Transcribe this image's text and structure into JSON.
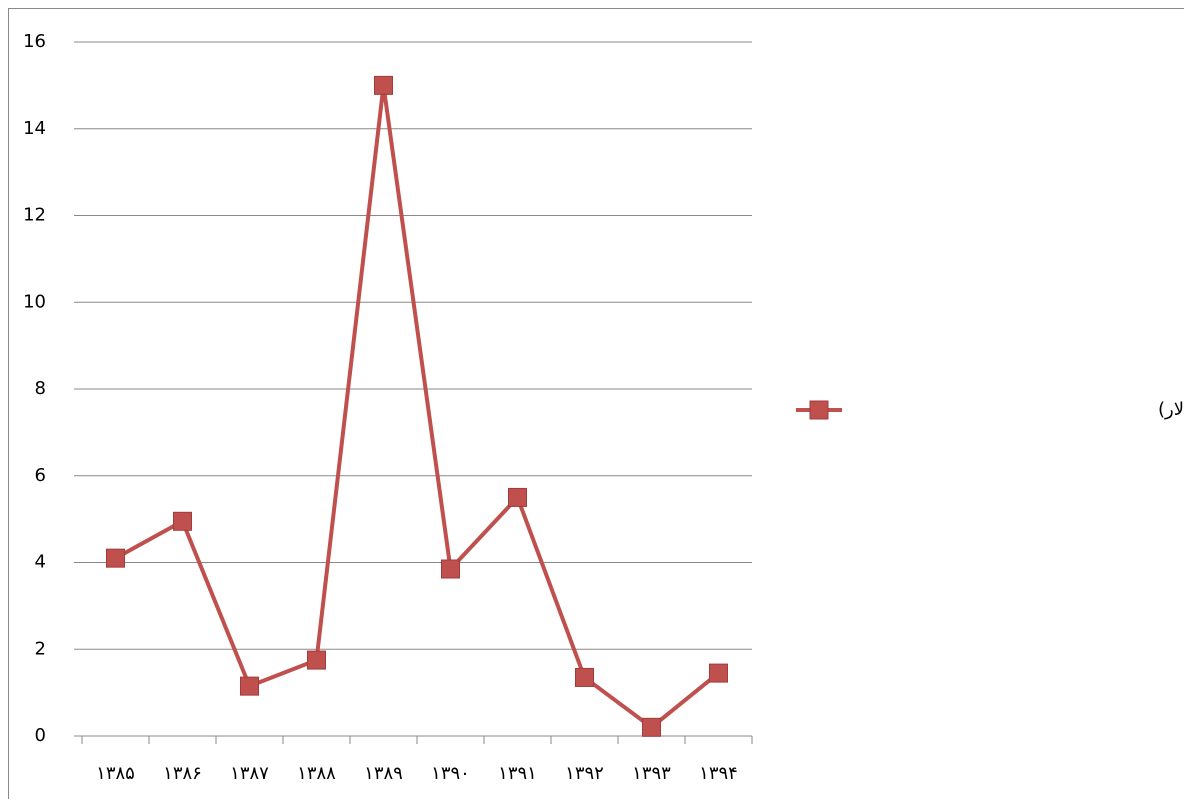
{
  "chart_data": {
    "type": "line",
    "categories": [
      "۱۳۸۵",
      "۱۳۸۶",
      "۱۳۸۷",
      "۱۳۸۸",
      "۱۳۸۹",
      "۱۳۹۰",
      "۱۳۹۱",
      "۱۳۹۲",
      "۱۳۹۳",
      "۱۳۹۴"
    ],
    "series": [
      {
        "name": "ارزش اوراق فروخته شده(میلیارد دلار)",
        "color": "#c0504d",
        "values": [
          4.1,
          4.95,
          1.15,
          1.75,
          15,
          3.85,
          5.5,
          1.35,
          0.2,
          1.45
        ]
      }
    ],
    "ylim": [
      0,
      16
    ],
    "yticks": [
      0,
      2,
      4,
      6,
      8,
      10,
      12,
      14,
      16
    ],
    "grid": true,
    "legend": "right"
  }
}
